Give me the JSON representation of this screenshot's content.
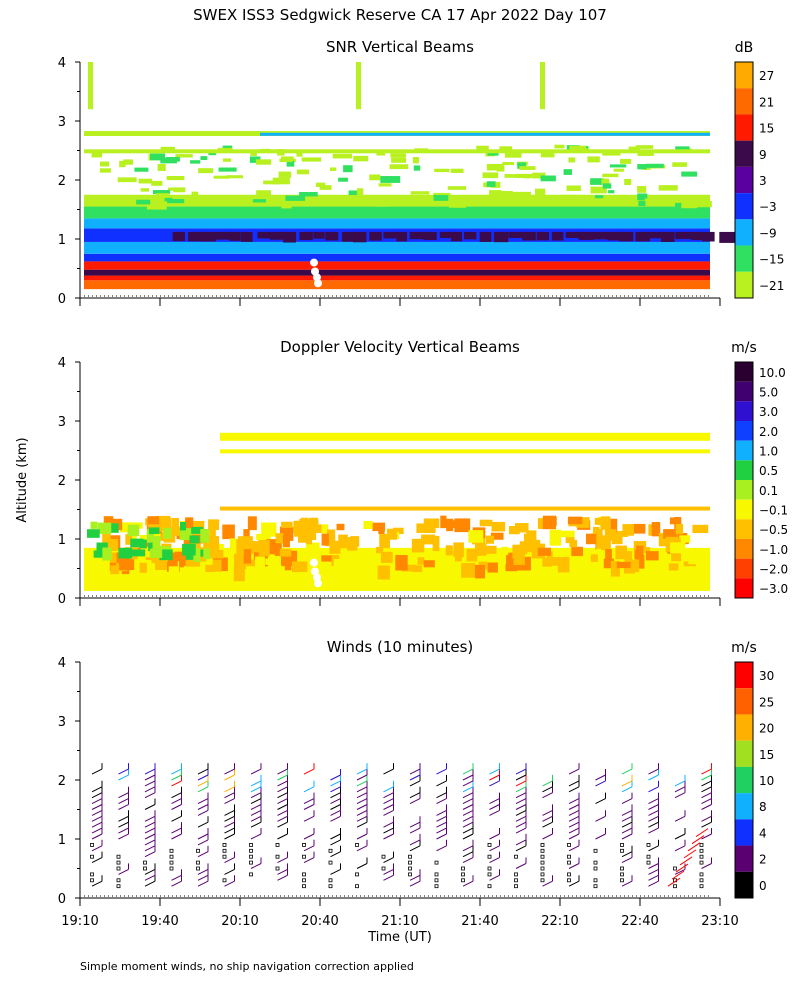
{
  "page_title": "SWEX ISS3 Sedgwick Reserve CA  17 Apr 2022 Day 107",
  "y_axis_label": "Altitude (km)",
  "x_axis_label": "Time (UT)",
  "footnote": "Simple moment winds, no ship navigation correction applied",
  "chart_data": [
    {
      "type": "heatmap",
      "title": "SNR Vertical Beams",
      "colorbar_unit": "dB",
      "colorbar_labels": [
        "27",
        "21",
        "15",
        "9",
        "3",
        "−3",
        "−9",
        "−15",
        "−21"
      ],
      "colorbar_colors": [
        "#ffaa00",
        "#ff6a00",
        "#ff1a00",
        "#3a0a4a",
        "#5a00a0",
        "#1030ff",
        "#10b0ff",
        "#30e060",
        "#b8f020"
      ],
      "ylabel": "Altitude (km)",
      "ylim": [
        0,
        4
      ],
      "yticks": [
        "0",
        "1",
        "2",
        "3",
        "4"
      ]
    },
    {
      "type": "heatmap",
      "title": "Doppler Velocity Vertical Beams",
      "colorbar_unit": "m/s",
      "colorbar_labels": [
        "10.0",
        "5.0",
        "3.0",
        "2.0",
        "1.0",
        "0.5",
        "0.1",
        "−0.1",
        "−0.5",
        "−1.0",
        "−2.0",
        "−3.0"
      ],
      "colorbar_colors": [
        "#2a0030",
        "#400070",
        "#3010d0",
        "#1040ff",
        "#10b0ff",
        "#20d040",
        "#a8f020",
        "#f8f800",
        "#ffc000",
        "#ff8800",
        "#ff4000",
        "#ff0000"
      ],
      "ylabel": "Altitude (km)",
      "ylim": [
        0,
        4
      ],
      "yticks": [
        "0",
        "1",
        "2",
        "3",
        "4"
      ]
    },
    {
      "type": "scatter",
      "title": "Winds (10 minutes)",
      "colorbar_unit": "m/s",
      "colorbar_labels": [
        "30",
        "25",
        "20",
        "15",
        "10",
        "8",
        "4",
        "2",
        "0"
      ],
      "colorbar_colors": [
        "#ff0000",
        "#ff6000",
        "#ffb000",
        "#a0e020",
        "#20d060",
        "#10b0ff",
        "#1030ff",
        "#5a0070",
        "#000000"
      ],
      "ylabel": "Altitude (km)",
      "ylim": [
        0,
        4
      ],
      "yticks": [
        "0",
        "1",
        "2",
        "3",
        "4"
      ],
      "xlabel": "Time (UT)",
      "xticks": [
        "19:10",
        "19:40",
        "20:10",
        "20:40",
        "21:10",
        "21:40",
        "22:10",
        "22:40",
        "23:10"
      ]
    }
  ]
}
